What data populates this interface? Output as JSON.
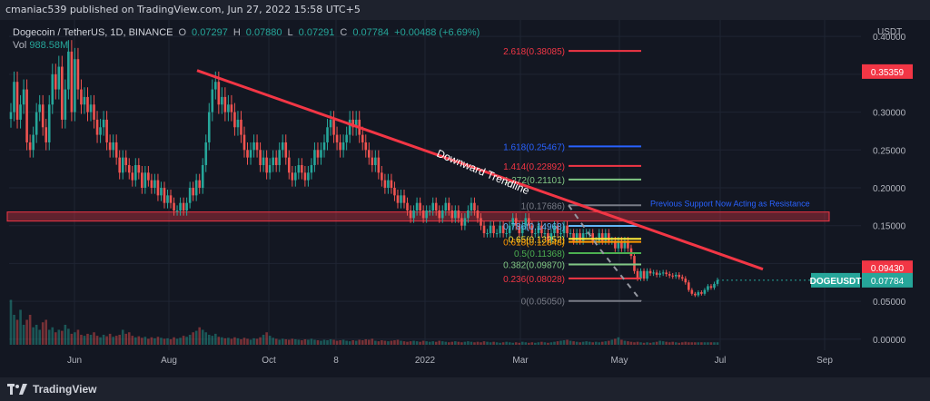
{
  "header": {
    "publisher_line": "cmaniac539 published on TradingView.com, Jun 27, 2022 15:58 UTC+5"
  },
  "legend": {
    "symbol": "Dogecoin / TetherUS, 1D, BINANCE",
    "o_label": "O",
    "o_val": "0.07297",
    "h_label": "H",
    "h_val": "0.07880",
    "l_label": "L",
    "l_val": "0.07291",
    "c_label": "C",
    "c_val": "0.07784",
    "change": "+0.00488 (+6.69%)",
    "vol_label": "Vol",
    "vol_val": "988.58M"
  },
  "footer": {
    "brand": "TradingView"
  },
  "colors": {
    "up": "#26a69a",
    "down": "#ef5350",
    "trend": "#f23645",
    "bg": "#131722"
  },
  "chart_data": {
    "type": "candlestick",
    "price_scale_label": "USDT",
    "y_ticks": [
      "0.40000",
      "0.35000",
      "0.30000",
      "0.25000",
      "0.20000",
      "0.15000",
      "0.10000",
      "0.05000",
      "0.00000"
    ],
    "y_tick_values": [
      0.4,
      0.35,
      0.3,
      0.25,
      0.2,
      0.15,
      0.1,
      0.05,
      0.0
    ],
    "ylim": [
      -0.005,
      0.405
    ],
    "x_ticks": [
      "Jun",
      "Aug",
      "Oct",
      "8",
      "2022",
      "Mar",
      "May",
      "Jul",
      "Sep"
    ],
    "badges": [
      {
        "label": "0.35359",
        "value": 0.35359,
        "color": "#f23645"
      },
      {
        "label": "0.09430",
        "value": 0.0943,
        "color": "#f23645"
      },
      {
        "label": "0.07784",
        "value": 0.07784,
        "color": "#26a69a"
      }
    ],
    "symbol_tag": "DOGEUSDT",
    "annotations": {
      "trendline_label": "Downward Trendline",
      "resistance_label": "Previous Support Now Acting as Resistance",
      "resistance_zone": [
        0.156,
        0.168
      ]
    },
    "fib_levels": [
      {
        "label": "2.618(0.38085)",
        "value": 0.38085,
        "color": "#f23645"
      },
      {
        "label": "1.618(0.25467)",
        "value": 0.25467,
        "color": "#2962ff"
      },
      {
        "label": "1.414(0.22892)",
        "value": 0.22892,
        "color": "#f23645"
      },
      {
        "label": "1.272(0.21101)",
        "value": 0.21101,
        "color": "#81c784"
      },
      {
        "label": "1(0.17686)",
        "value": 0.17686,
        "color": "#787b86"
      },
      {
        "label": "0.786(0.14968)",
        "value": 0.14968,
        "color": "#64b5f6"
      },
      {
        "label": "0.65(0.13252)",
        "value": 0.13252,
        "color": "#ffeb3b"
      },
      {
        "label": "0.618(0.12848)",
        "value": 0.12848,
        "color": "#ff9800"
      },
      {
        "label": "0.5(0.11368)",
        "value": 0.11368,
        "color": "#4caf50"
      },
      {
        "label": "0.382(0.09870)",
        "value": 0.0987,
        "color": "#81c784"
      },
      {
        "label": "0.236(0.08028)",
        "value": 0.08028,
        "color": "#f23645"
      },
      {
        "label": "0(0.05050)",
        "value": 0.0505,
        "color": "#787b86"
      }
    ],
    "price_path": [
      0.3,
      0.34,
      0.29,
      0.31,
      0.33,
      0.26,
      0.25,
      0.27,
      0.3,
      0.31,
      0.28,
      0.26,
      0.31,
      0.35,
      0.33,
      0.36,
      0.29,
      0.33,
      0.38,
      0.3,
      0.37,
      0.33,
      0.31,
      0.32,
      0.3,
      0.31,
      0.29,
      0.27,
      0.28,
      0.29,
      0.26,
      0.25,
      0.26,
      0.24,
      0.22,
      0.24,
      0.23,
      0.22,
      0.21,
      0.23,
      0.22,
      0.2,
      0.22,
      0.21,
      0.2,
      0.21,
      0.19,
      0.2,
      0.18,
      0.19,
      0.18,
      0.17,
      0.17,
      0.18,
      0.17,
      0.18,
      0.2,
      0.19,
      0.21,
      0.2,
      0.23,
      0.26,
      0.3,
      0.33,
      0.34,
      0.31,
      0.32,
      0.3,
      0.31,
      0.3,
      0.28,
      0.29,
      0.27,
      0.25,
      0.24,
      0.25,
      0.26,
      0.25,
      0.23,
      0.24,
      0.22,
      0.23,
      0.24,
      0.23,
      0.25,
      0.26,
      0.24,
      0.22,
      0.21,
      0.22,
      0.23,
      0.22,
      0.21,
      0.22,
      0.23,
      0.25,
      0.24,
      0.25,
      0.26,
      0.28,
      0.29,
      0.27,
      0.26,
      0.25,
      0.26,
      0.27,
      0.29,
      0.28,
      0.29,
      0.27,
      0.26,
      0.25,
      0.24,
      0.23,
      0.24,
      0.22,
      0.21,
      0.2,
      0.21,
      0.2,
      0.19,
      0.18,
      0.19,
      0.18,
      0.17,
      0.16,
      0.17,
      0.18,
      0.17,
      0.16,
      0.17,
      0.17,
      0.18,
      0.17,
      0.16,
      0.17,
      0.18,
      0.17,
      0.16,
      0.17,
      0.16,
      0.15,
      0.16,
      0.17,
      0.18,
      0.17,
      0.16,
      0.15,
      0.14,
      0.14,
      0.15,
      0.14,
      0.14,
      0.15,
      0.14,
      0.14,
      0.15,
      0.16,
      0.15,
      0.14,
      0.15,
      0.16,
      0.15,
      0.14,
      0.14,
      0.15,
      0.14,
      0.14,
      0.13,
      0.14,
      0.15,
      0.14,
      0.14,
      0.15,
      0.14,
      0.14,
      0.13,
      0.14,
      0.13,
      0.14,
      0.14,
      0.14,
      0.13,
      0.13,
      0.14,
      0.13,
      0.14,
      0.13,
      0.13,
      0.12,
      0.13,
      0.12,
      0.13,
      0.12,
      0.11,
      0.09,
      0.08,
      0.09,
      0.08,
      0.09,
      0.087,
      0.088,
      0.085,
      0.087,
      0.088,
      0.086,
      0.084,
      0.083,
      0.085,
      0.082,
      0.08,
      0.075,
      0.065,
      0.06,
      0.058,
      0.062,
      0.06,
      0.065,
      0.07,
      0.068,
      0.073,
      0.078
    ],
    "volume_path": [
      0.9,
      0.6,
      0.5,
      0.7,
      0.4,
      0.5,
      0.6,
      0.35,
      0.4,
      0.3,
      0.45,
      0.5,
      0.3,
      0.35,
      0.25,
      0.3,
      0.28,
      0.4,
      0.32,
      0.22,
      0.25,
      0.3,
      0.2,
      0.18,
      0.22,
      0.2,
      0.25,
      0.18,
      0.15,
      0.2,
      0.17,
      0.22,
      0.16,
      0.18,
      0.2,
      0.3,
      0.22,
      0.25,
      0.18,
      0.15,
      0.17,
      0.14,
      0.16,
      0.12,
      0.15,
      0.13,
      0.16,
      0.14,
      0.12,
      0.13,
      0.11,
      0.15,
      0.12,
      0.14,
      0.18,
      0.16,
      0.2,
      0.25,
      0.28,
      0.35,
      0.3,
      0.25,
      0.2,
      0.18,
      0.22,
      0.16,
      0.15,
      0.13,
      0.14,
      0.12,
      0.15,
      0.13,
      0.11,
      0.14,
      0.12,
      0.1,
      0.13,
      0.12,
      0.15,
      0.2,
      0.25,
      0.18,
      0.14,
      0.12,
      0.1,
      0.12,
      0.11,
      0.1,
      0.12,
      0.11,
      0.1,
      0.09,
      0.11,
      0.1,
      0.12,
      0.1,
      0.09,
      0.08,
      0.1,
      0.09,
      0.11,
      0.1,
      0.08,
      0.09,
      0.1,
      0.08,
      0.07,
      0.09,
      0.08,
      0.1,
      0.09,
      0.11,
      0.1,
      0.12,
      0.08,
      0.07,
      0.09,
      0.08,
      0.07,
      0.08,
      0.09,
      0.1,
      0.08,
      0.07,
      0.06,
      0.07,
      0.08,
      0.07,
      0.06,
      0.08,
      0.07,
      0.06,
      0.07,
      0.06,
      0.08,
      0.07,
      0.06,
      0.05,
      0.06,
      0.07,
      0.06,
      0.05,
      0.06,
      0.07,
      0.06,
      0.05,
      0.06,
      0.05,
      0.07,
      0.06,
      0.05,
      0.06,
      0.05,
      0.04,
      0.05,
      0.06,
      0.05,
      0.04,
      0.05,
      0.04,
      0.06,
      0.05,
      0.04,
      0.05,
      0.04,
      0.05,
      0.06,
      0.05,
      0.04,
      0.05,
      0.06,
      0.07,
      0.08,
      0.09,
      0.1,
      0.08,
      0.07,
      0.06,
      0.05,
      0.06,
      0.07,
      0.06,
      0.05,
      0.06,
      0.05,
      0.06,
      0.07,
      0.08,
      0.1,
      0.12,
      0.15,
      0.1,
      0.08,
      0.07,
      0.06,
      0.05,
      0.06,
      0.05,
      0.04,
      0.05,
      0.04,
      0.05,
      0.06,
      0.08,
      0.07,
      0.06,
      0.05,
      0.06,
      0.05,
      0.04,
      0.05,
      0.06
    ]
  }
}
